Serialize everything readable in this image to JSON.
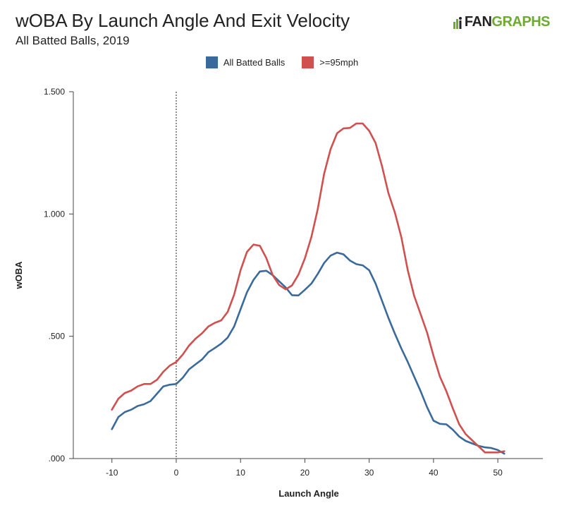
{
  "header": {
    "title": "wOBA By Launch Angle And Exit Velocity",
    "subtitle": "All Batted Balls, 2019",
    "logo_text_dark": "FAN",
    "logo_text_green": "GRAPHS"
  },
  "colors": {
    "blue": "#3a6a9c",
    "red": "#d0504f",
    "logo_green": "#6cab2f"
  },
  "chart_data": {
    "type": "line",
    "title": "wOBA By Launch Angle And Exit Velocity",
    "subtitle": "All Batted Balls, 2019",
    "xlabel": "Launch Angle",
    "ylabel": "wOBA",
    "xlim": [
      -16,
      57
    ],
    "ylim": [
      0,
      1.5
    ],
    "xticks": [
      -10,
      0,
      10,
      20,
      30,
      40,
      50
    ],
    "xtick_labels": [
      "-10",
      "0",
      "10",
      "20",
      "30",
      "40",
      "50"
    ],
    "yticks": [
      0,
      0.5,
      1.0,
      1.5
    ],
    "ytick_labels": [
      ".000",
      ".500",
      "1.000",
      "1.500"
    ],
    "reference_line_x": 0,
    "legend_position": "top-center",
    "x": [
      -10,
      -9,
      -8,
      -7,
      -6,
      -5,
      -4,
      -3,
      -2,
      -1,
      0,
      1,
      2,
      3,
      4,
      5,
      6,
      7,
      8,
      9,
      10,
      11,
      12,
      13,
      14,
      15,
      16,
      17,
      18,
      19,
      20,
      21,
      22,
      23,
      24,
      25,
      26,
      27,
      28,
      29,
      30,
      31,
      32,
      33,
      34,
      35,
      36,
      37,
      38,
      39,
      40,
      41,
      42,
      43,
      44,
      45,
      46,
      47,
      48,
      49,
      50,
      51
    ],
    "series": [
      {
        "name": "All Batted Balls",
        "color": "#3a6a9c",
        "values": [
          0.12,
          0.17,
          0.19,
          0.2,
          0.215,
          0.222,
          0.235,
          0.265,
          0.295,
          0.302,
          0.305,
          0.33,
          0.365,
          0.385,
          0.405,
          0.435,
          0.452,
          0.47,
          0.495,
          0.54,
          0.61,
          0.68,
          0.73,
          0.765,
          0.768,
          0.75,
          0.725,
          0.7,
          0.668,
          0.667,
          0.69,
          0.715,
          0.755,
          0.8,
          0.83,
          0.842,
          0.835,
          0.81,
          0.795,
          0.79,
          0.77,
          0.715,
          0.645,
          0.575,
          0.51,
          0.45,
          0.395,
          0.335,
          0.275,
          0.21,
          0.155,
          0.142,
          0.14,
          0.118,
          0.09,
          0.072,
          0.062,
          0.052,
          0.046,
          0.043,
          0.035,
          0.02
        ]
      },
      {
        "name": ">=95mph",
        "color": "#d0504f",
        "values": [
          0.2,
          0.245,
          0.268,
          0.278,
          0.295,
          0.305,
          0.305,
          0.322,
          0.355,
          0.38,
          0.395,
          0.425,
          0.462,
          0.49,
          0.512,
          0.54,
          0.555,
          0.565,
          0.6,
          0.67,
          0.77,
          0.845,
          0.875,
          0.87,
          0.82,
          0.75,
          0.71,
          0.692,
          0.708,
          0.752,
          0.818,
          0.905,
          1.02,
          1.165,
          1.265,
          1.33,
          1.35,
          1.352,
          1.37,
          1.37,
          1.34,
          1.29,
          1.195,
          1.085,
          1.005,
          0.905,
          0.77,
          0.665,
          0.59,
          0.515,
          0.42,
          0.335,
          0.275,
          0.205,
          0.14,
          0.1,
          0.075,
          0.05,
          0.025,
          0.025,
          0.025,
          0.03
        ]
      }
    ]
  }
}
